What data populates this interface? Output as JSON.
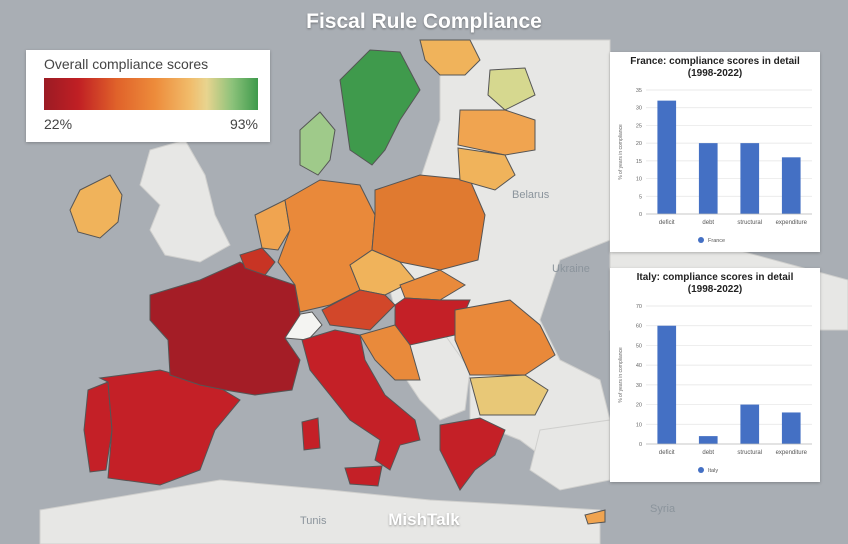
{
  "title": "Fiscal Rule Compliance",
  "footer": "MishTalk",
  "legend": {
    "title": "Overall compliance scores",
    "min_label": "22%",
    "max_label": "93%"
  },
  "map_labels": [
    "Belarus",
    "Ukraine",
    "Syria",
    "Tunis"
  ],
  "colors": {
    "background": "#a9aeb4",
    "land_outside": "#e7e7e5",
    "sea": "#a9aeb4",
    "deep_red": "#a41d26",
    "red": "#c42027",
    "orange": "#e07a30",
    "light_orange": "#f0b35b",
    "yellow_green": "#d6d88f",
    "green": "#3f9a4c",
    "bar_blue": "#4470c4"
  },
  "chart_data": [
    {
      "type": "bar",
      "title": "France: compliance scores in detail (1998-2022)",
      "categories": [
        "deficit",
        "debt",
        "structural",
        "expenditure"
      ],
      "series": [
        {
          "name": "France",
          "values": [
            32,
            20,
            20,
            16
          ]
        }
      ],
      "ylabel": "% of years in compliance",
      "ylim": [
        0,
        35
      ],
      "yticks": [
        0,
        5,
        10,
        15,
        20,
        25,
        30,
        35
      ],
      "legend_position": "bottom"
    },
    {
      "type": "bar",
      "title": "Italy: compliance scores in detail (1998-2022)",
      "categories": [
        "deficit",
        "debt",
        "structural",
        "expenditure"
      ],
      "series": [
        {
          "name": "Italy",
          "values": [
            60,
            4,
            20,
            16
          ]
        }
      ],
      "ylabel": "% of years in compliance",
      "ylim": [
        0,
        70
      ],
      "yticks": [
        0,
        10,
        20,
        30,
        40,
        50,
        60,
        70
      ],
      "legend_position": "bottom"
    }
  ]
}
